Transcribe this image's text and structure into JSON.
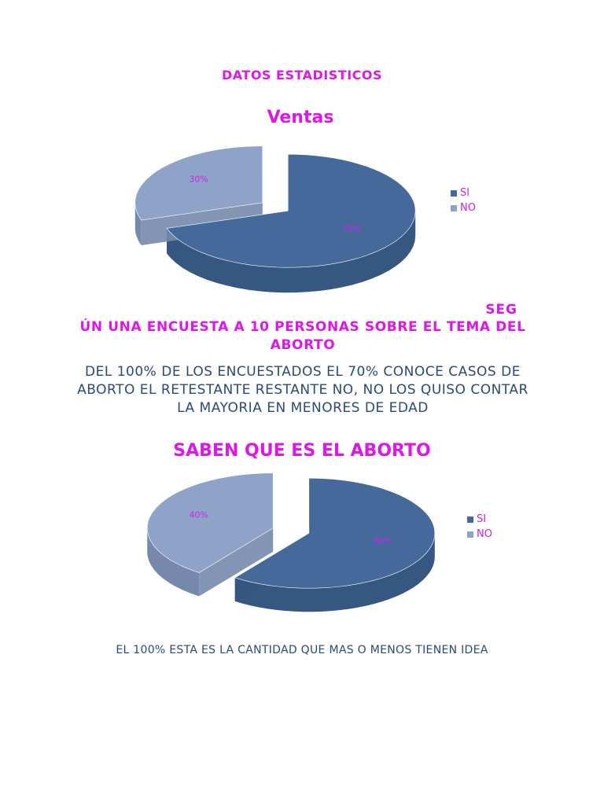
{
  "document": {
    "heading": "DATOS ESTADISTICOS",
    "seg_fragment": "SEG",
    "survey_heading": "ÚN UNA ENCUESTA A 10 PERSONAS SOBRE EL TEMA DEL ABORTO",
    "survey_body": "DEL 100% DE LOS ENCUESTADOS EL 70% CONOCE CASOS DE ABORTO EL RETESTANTE RESTANTE NO, NO LOS QUISO CONTAR LA MAYORIA EN MENORES DE EDAD",
    "footer_note": "EL 100% ESTA ES LA CANTIDAD QUE MAS O MENOS TIENEN IDEA"
  },
  "colors": {
    "magenta": "#dd17e8",
    "navy_text": "#2b4a78",
    "slice_si": "#45699b",
    "slice_si_side": "#36577f",
    "slice_no": "#8ea3c7",
    "slice_no_side": "#7689ad",
    "label_pct": "#cc22ee"
  },
  "chart_data": [
    {
      "type": "pie",
      "title": "Ventas",
      "categories": [
        "SI",
        "NO"
      ],
      "values": [
        70,
        30
      ],
      "data_labels": [
        "70%",
        "30%"
      ],
      "legend": "right",
      "style": "3d-exploded"
    },
    {
      "type": "pie",
      "title": "SABEN QUE ES EL ABORTO",
      "categories": [
        "SI",
        "NO"
      ],
      "values": [
        60,
        40
      ],
      "data_labels": [
        "60%",
        "40%"
      ],
      "legend": "right",
      "style": "3d-exploded"
    }
  ]
}
